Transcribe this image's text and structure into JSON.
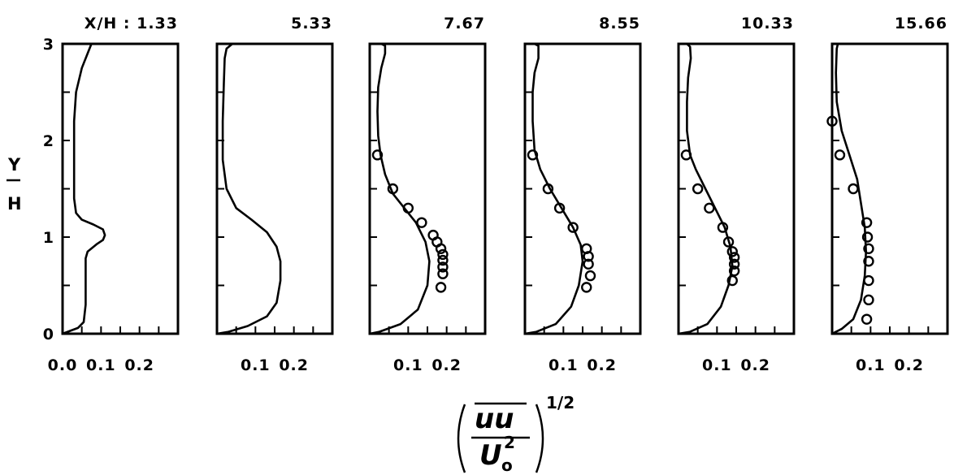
{
  "chart_data": {
    "type": "line",
    "ylabel_top": "Y",
    "ylabel_bottom": "H",
    "xlabel": {
      "numerator": "uu",
      "denominator": "U",
      "denominator_subscript": "o",
      "denominator_superscript": "2",
      "exponent": "1/2"
    },
    "ylim": [
      0,
      3
    ],
    "yticks": [
      "0",
      "1",
      "2",
      "3"
    ],
    "panels": [
      {
        "label": "X/H  :  1.33",
        "xticks": [
          {
            "v": 0.0,
            "label": "0.0"
          },
          {
            "v": 0.1,
            "label": "0.1"
          },
          {
            "v": 0.2,
            "label": "0.2"
          }
        ],
        "curve": [
          [
            0.0,
            0.0
          ],
          [
            0.04,
            0.06
          ],
          [
            0.055,
            0.12
          ],
          [
            0.06,
            0.3
          ],
          [
            0.06,
            0.6
          ],
          [
            0.06,
            0.78
          ],
          [
            0.065,
            0.85
          ],
          [
            0.09,
            0.93
          ],
          [
            0.105,
            0.97
          ],
          [
            0.11,
            1.02
          ],
          [
            0.105,
            1.08
          ],
          [
            0.08,
            1.13
          ],
          [
            0.05,
            1.18
          ],
          [
            0.035,
            1.25
          ],
          [
            0.03,
            1.4
          ],
          [
            0.03,
            1.8
          ],
          [
            0.03,
            2.2
          ],
          [
            0.035,
            2.5
          ],
          [
            0.05,
            2.75
          ],
          [
            0.065,
            2.9
          ],
          [
            0.075,
            3.0
          ]
        ],
        "points": []
      },
      {
        "label": "5.33",
        "xticks": [
          {
            "v": 0.1,
            "label": "0.1"
          },
          {
            "v": 0.2,
            "label": "0.2"
          }
        ],
        "curve": [
          [
            0.0,
            0.0
          ],
          [
            0.03,
            0.02
          ],
          [
            0.08,
            0.08
          ],
          [
            0.13,
            0.18
          ],
          [
            0.155,
            0.32
          ],
          [
            0.165,
            0.55
          ],
          [
            0.165,
            0.75
          ],
          [
            0.155,
            0.9
          ],
          [
            0.13,
            1.05
          ],
          [
            0.09,
            1.18
          ],
          [
            0.05,
            1.3
          ],
          [
            0.025,
            1.5
          ],
          [
            0.015,
            1.8
          ],
          [
            0.015,
            2.2
          ],
          [
            0.018,
            2.6
          ],
          [
            0.02,
            2.85
          ],
          [
            0.025,
            2.95
          ],
          [
            0.04,
            3.0
          ]
        ],
        "points": []
      },
      {
        "label": "7.67",
        "xticks": [
          {
            "v": 0.1,
            "label": "0.1"
          },
          {
            "v": 0.2,
            "label": "0.2"
          }
        ],
        "curve": [
          [
            0.0,
            0.0
          ],
          [
            0.025,
            0.02
          ],
          [
            0.08,
            0.1
          ],
          [
            0.125,
            0.25
          ],
          [
            0.15,
            0.5
          ],
          [
            0.155,
            0.75
          ],
          [
            0.145,
            0.95
          ],
          [
            0.12,
            1.15
          ],
          [
            0.09,
            1.3
          ],
          [
            0.06,
            1.45
          ],
          [
            0.04,
            1.65
          ],
          [
            0.028,
            1.85
          ],
          [
            0.022,
            2.05
          ],
          [
            0.02,
            2.3
          ],
          [
            0.022,
            2.55
          ],
          [
            0.03,
            2.75
          ],
          [
            0.04,
            2.9
          ],
          [
            0.04,
            2.98
          ],
          [
            0.03,
            3.0
          ]
        ],
        "points": [
          [
            0.02,
            1.85
          ],
          [
            0.06,
            1.5
          ],
          [
            0.1,
            1.3
          ],
          [
            0.135,
            1.15
          ],
          [
            0.165,
            1.02
          ],
          [
            0.175,
            0.95
          ],
          [
            0.185,
            0.88
          ],
          [
            0.19,
            0.82
          ],
          [
            0.19,
            0.76
          ],
          [
            0.19,
            0.69
          ],
          [
            0.19,
            0.62
          ],
          [
            0.185,
            0.48
          ]
        ]
      },
      {
        "label": "8.55",
        "xticks": [
          {
            "v": 0.1,
            "label": "0.1"
          },
          {
            "v": 0.2,
            "label": "0.2"
          }
        ],
        "curve": [
          [
            0.0,
            0.0
          ],
          [
            0.03,
            0.02
          ],
          [
            0.08,
            0.1
          ],
          [
            0.12,
            0.28
          ],
          [
            0.14,
            0.5
          ],
          [
            0.15,
            0.75
          ],
          [
            0.145,
            0.92
          ],
          [
            0.125,
            1.1
          ],
          [
            0.095,
            1.3
          ],
          [
            0.065,
            1.5
          ],
          [
            0.04,
            1.7
          ],
          [
            0.025,
            1.9
          ],
          [
            0.02,
            2.2
          ],
          [
            0.02,
            2.5
          ],
          [
            0.025,
            2.7
          ],
          [
            0.035,
            2.85
          ],
          [
            0.035,
            2.98
          ],
          [
            0.025,
            3.0
          ]
        ],
        "points": [
          [
            0.02,
            1.85
          ],
          [
            0.06,
            1.5
          ],
          [
            0.09,
            1.3
          ],
          [
            0.125,
            1.1
          ],
          [
            0.16,
            0.88
          ],
          [
            0.165,
            0.8
          ],
          [
            0.165,
            0.72
          ],
          [
            0.17,
            0.6
          ],
          [
            0.16,
            0.48
          ]
        ]
      },
      {
        "label": "10.33",
        "xticks": [
          {
            "v": 0.1,
            "label": "0.1"
          },
          {
            "v": 0.2,
            "label": "0.2"
          }
        ],
        "curve": [
          [
            0.0,
            0.0
          ],
          [
            0.03,
            0.02
          ],
          [
            0.075,
            0.1
          ],
          [
            0.11,
            0.28
          ],
          [
            0.13,
            0.5
          ],
          [
            0.14,
            0.7
          ],
          [
            0.135,
            0.9
          ],
          [
            0.12,
            1.1
          ],
          [
            0.095,
            1.3
          ],
          [
            0.07,
            1.5
          ],
          [
            0.045,
            1.7
          ],
          [
            0.03,
            1.85
          ],
          [
            0.022,
            2.1
          ],
          [
            0.022,
            2.4
          ],
          [
            0.025,
            2.65
          ],
          [
            0.032,
            2.85
          ],
          [
            0.03,
            2.97
          ],
          [
            0.022,
            3.0
          ]
        ],
        "points": [
          [
            0.02,
            1.85
          ],
          [
            0.05,
            1.5
          ],
          [
            0.08,
            1.3
          ],
          [
            0.115,
            1.1
          ],
          [
            0.13,
            0.95
          ],
          [
            0.14,
            0.85
          ],
          [
            0.145,
            0.79
          ],
          [
            0.145,
            0.72
          ],
          [
            0.145,
            0.65
          ],
          [
            0.14,
            0.55
          ]
        ]
      },
      {
        "label": "15.66",
        "xticks": [
          {
            "v": 0.1,
            "label": "0.1"
          },
          {
            "v": 0.2,
            "label": "0.2"
          }
        ],
        "curve": [
          [
            0.0,
            0.0
          ],
          [
            0.025,
            0.05
          ],
          [
            0.055,
            0.15
          ],
          [
            0.075,
            0.35
          ],
          [
            0.085,
            0.6
          ],
          [
            0.088,
            0.85
          ],
          [
            0.085,
            1.1
          ],
          [
            0.075,
            1.35
          ],
          [
            0.065,
            1.6
          ],
          [
            0.045,
            1.85
          ],
          [
            0.025,
            2.1
          ],
          [
            0.012,
            2.4
          ],
          [
            0.01,
            2.7
          ],
          [
            0.012,
            2.95
          ],
          [
            0.015,
            3.0
          ]
        ],
        "points": [
          [
            0.0,
            2.2
          ],
          [
            0.02,
            1.85
          ],
          [
            0.055,
            1.5
          ],
          [
            0.09,
            1.15
          ],
          [
            0.092,
            1.0
          ],
          [
            0.095,
            0.88
          ],
          [
            0.095,
            0.75
          ],
          [
            0.095,
            0.55
          ],
          [
            0.095,
            0.35
          ],
          [
            0.09,
            0.15
          ]
        ]
      }
    ]
  }
}
